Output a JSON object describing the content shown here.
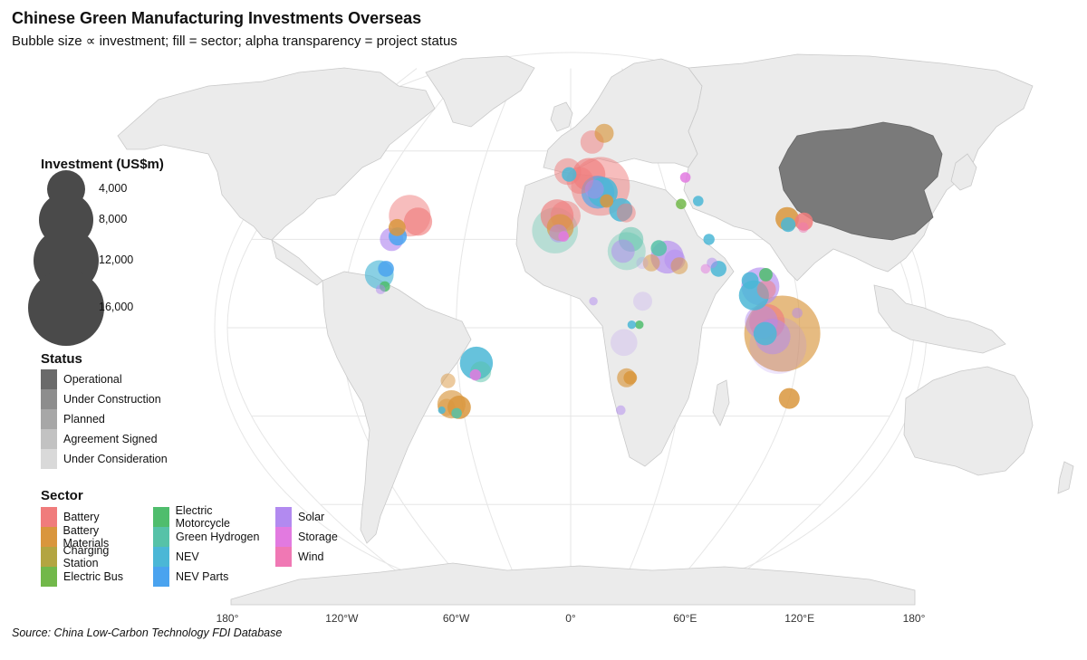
{
  "title": "Chinese Green Manufacturing Investments Overseas",
  "subtitle": "Bubble size ∝ investment; fill = sector; alpha transparency = project status",
  "source": "Source: China Low-Carbon Technology FDI Database",
  "x_axis_labels": [
    "180°",
    "120°W",
    "60°W",
    "0°",
    "60°E",
    "120°E",
    "180°"
  ],
  "x_axis_lons": [
    -180,
    -120,
    -60,
    0,
    60,
    120,
    180
  ],
  "colors": {
    "land": "#ebebeb",
    "border": "#c9c9c9",
    "china": "#7a7a7a",
    "graticule": "#e6e6e6"
  },
  "size_legend": {
    "title": "Investment (US$m)",
    "items": [
      {
        "value": 4000,
        "label": "4,000"
      },
      {
        "value": 8000,
        "label": "8,000"
      },
      {
        "value": 12000,
        "label": "12,000"
      },
      {
        "value": 16000,
        "label": "16,000"
      }
    ]
  },
  "status_legend": {
    "title": "Status",
    "items": [
      {
        "label": "Operational",
        "alpha": 0.85
      },
      {
        "label": "Under Construction",
        "alpha": 0.65
      },
      {
        "label": "Planned",
        "alpha": 0.5
      },
      {
        "label": "Agreement Signed",
        "alpha": 0.35
      },
      {
        "label": "Under Consideration",
        "alpha": 0.22
      }
    ]
  },
  "sector_legend": {
    "title": "Sector",
    "items": [
      {
        "label": "Battery",
        "color": "#f07c7c"
      },
      {
        "label": "Battery Materials",
        "color": "#d9963d"
      },
      {
        "label": "Charging Station",
        "color": "#b3a541"
      },
      {
        "label": "Electric Bus",
        "color": "#72b84a"
      },
      {
        "label": "Electric Motorcycle",
        "color": "#4fbd6d"
      },
      {
        "label": "Green Hydrogen",
        "color": "#56c2a8"
      },
      {
        "label": "NEV",
        "color": "#4bb7d6"
      },
      {
        "label": "NEV Parts",
        "color": "#4aa3ef"
      },
      {
        "label": "Solar",
        "color": "#b28af0"
      },
      {
        "label": "Storage",
        "color": "#e27ae0"
      },
      {
        "label": "Wind",
        "color": "#f078b4"
      }
    ]
  },
  "projects": [
    {
      "lon": -95,
      "lat": 38,
      "value": 4800,
      "sector": "Battery",
      "status": "Planned"
    },
    {
      "lon": -89,
      "lat": 36,
      "value": 2200,
      "sector": "Battery",
      "status": "Under Construction"
    },
    {
      "lon": -100,
      "lat": 34,
      "value": 800,
      "sector": "Battery Materials",
      "status": "Operational"
    },
    {
      "lon": -101,
      "lat": 30,
      "value": 1500,
      "sector": "Solar",
      "status": "Under Construction"
    },
    {
      "lon": -98,
      "lat": 31,
      "value": 900,
      "sector": "NEV Parts",
      "status": "Operational"
    },
    {
      "lon": -103,
      "lat": 18,
      "value": 2300,
      "sector": "NEV",
      "status": "Under Construction"
    },
    {
      "lon": -100,
      "lat": 20,
      "value": 700,
      "sector": "NEV Parts",
      "status": "Operational"
    },
    {
      "lon": -99,
      "lat": 14,
      "value": 300,
      "sector": "Electric Motorcycle",
      "status": "Operational"
    },
    {
      "lon": -101,
      "lat": 13,
      "value": 250,
      "sector": "Solar",
      "status": "Planned"
    },
    {
      "lon": -50,
      "lat": -12,
      "value": 3000,
      "sector": "NEV",
      "status": "Operational"
    },
    {
      "lon": -48,
      "lat": -15,
      "value": 1200,
      "sector": "Green Hydrogen",
      "status": "Planned"
    },
    {
      "lon": -51,
      "lat": -16,
      "value": 350,
      "sector": "Storage",
      "status": "Operational"
    },
    {
      "lon": -66,
      "lat": -18,
      "value": 600,
      "sector": "Battery Materials",
      "status": "Planned"
    },
    {
      "lon": -66,
      "lat": -26,
      "value": 2200,
      "sector": "Battery Materials",
      "status": "Under Construction"
    },
    {
      "lon": -62,
      "lat": -27,
      "value": 1500,
      "sector": "Battery Materials",
      "status": "Operational"
    },
    {
      "lon": -69,
      "lat": -27,
      "value": 800,
      "sector": "Battery Materials",
      "status": "Planned"
    },
    {
      "lon": -64,
      "lat": -29,
      "value": 300,
      "sector": "Green Hydrogen",
      "status": "Operational"
    },
    {
      "lon": -72,
      "lat": -28,
      "value": 150,
      "sector": "NEV",
      "status": "Operational"
    },
    {
      "lon": -8,
      "lat": 38,
      "value": 3000,
      "sector": "Battery",
      "status": "Under Construction"
    },
    {
      "lon": -3,
      "lat": 38,
      "value": 2500,
      "sector": "Battery",
      "status": "Planned"
    },
    {
      "lon": -9,
      "lat": 33,
      "value": 5800,
      "sector": "Green Hydrogen",
      "status": "Agreement Signed"
    },
    {
      "lon": -6,
      "lat": 34,
      "value": 2000,
      "sector": "Battery Materials",
      "status": "Under Construction"
    },
    {
      "lon": -7,
      "lat": 32,
      "value": 900,
      "sector": "Solar",
      "status": "Planned"
    },
    {
      "lon": -4,
      "lat": 31,
      "value": 300,
      "sector": "Storage",
      "status": "Operational"
    },
    {
      "lon": -2,
      "lat": 53,
      "value": 2000,
      "sector": "Battery",
      "status": "Planned"
    },
    {
      "lon": -1,
      "lat": 52,
      "value": 600,
      "sector": "NEV",
      "status": "Operational"
    },
    {
      "lon": 6,
      "lat": 50,
      "value": 2000,
      "sector": "Battery",
      "status": "Planned"
    },
    {
      "lon": 12,
      "lat": 52,
      "value": 3000,
      "sector": "Battery",
      "status": "Under Construction"
    },
    {
      "lon": 19,
      "lat": 48,
      "value": 9500,
      "sector": "Battery",
      "status": "Planned"
    },
    {
      "lon": 17,
      "lat": 46,
      "value": 3000,
      "sector": "NEV Parts",
      "status": "Under Construction"
    },
    {
      "lon": 20,
      "lat": 46,
      "value": 2500,
      "sector": "NEV",
      "status": "Operational"
    },
    {
      "lon": 15,
      "lat": 47,
      "value": 1000,
      "sector": "Solar",
      "status": "Planned"
    },
    {
      "lon": 22,
      "lat": 43,
      "value": 500,
      "sector": "Battery Materials",
      "status": "Operational"
    },
    {
      "lon": 16,
      "lat": 63,
      "value": 1500,
      "sector": "Battery",
      "status": "Planned"
    },
    {
      "lon": 26,
      "lat": 66,
      "value": 1000,
      "sector": "Battery Materials",
      "status": "Under Construction"
    },
    {
      "lon": 30,
      "lat": 40,
      "value": 1500,
      "sector": "NEV",
      "status": "Operational"
    },
    {
      "lon": 33,
      "lat": 39,
      "value": 1000,
      "sector": "Battery",
      "status": "Planned"
    },
    {
      "lon": 34,
      "lat": 30,
      "value": 1700,
      "sector": "Green Hydrogen",
      "status": "Planned"
    },
    {
      "lon": 31,
      "lat": 26,
      "value": 4000,
      "sector": "Green Hydrogen",
      "status": "Agreement Signed"
    },
    {
      "lon": 29,
      "lat": 26,
      "value": 1500,
      "sector": "Solar",
      "status": "Planned"
    },
    {
      "lon": 39,
      "lat": 22,
      "value": 400,
      "sector": "Solar",
      "status": "Under Consideration"
    },
    {
      "lon": 44,
      "lat": 22,
      "value": 800,
      "sector": "Battery Materials",
      "status": "Planned"
    },
    {
      "lon": 53,
      "lat": 24,
      "value": 3000,
      "sector": "Solar",
      "status": "Under Construction"
    },
    {
      "lon": 57,
      "lat": 23,
      "value": 1200,
      "sector": "Solar",
      "status": "Planned"
    },
    {
      "lon": 59,
      "lat": 21,
      "value": 800,
      "sector": "Battery Materials",
      "status": "Planned"
    },
    {
      "lon": 49,
      "lat": 27,
      "value": 700,
      "sector": "Green Hydrogen",
      "status": "Operational"
    },
    {
      "lon": 67,
      "lat": 42,
      "value": 300,
      "sector": "Electric Bus",
      "status": "Operational"
    },
    {
      "lon": 78,
      "lat": 43,
      "value": 300,
      "sector": "NEV",
      "status": "Operational"
    },
    {
      "lon": 78,
      "lat": 30,
      "value": 350,
      "sector": "NEV",
      "status": "Operational"
    },
    {
      "lon": 80,
      "lat": 20,
      "value": 700,
      "sector": "NEV",
      "status": "Operational"
    },
    {
      "lon": 77,
      "lat": 22,
      "value": 300,
      "sector": "Solar",
      "status": "Planned"
    },
    {
      "lon": 73,
      "lat": 20,
      "value": 250,
      "sector": "Storage",
      "status": "Planned"
    },
    {
      "lon": 75,
      "lat": 51,
      "value": 300,
      "sector": "Storage",
      "status": "Operational"
    },
    {
      "lon": 96,
      "lat": 16,
      "value": 800,
      "sector": "NEV",
      "status": "Operational"
    },
    {
      "lon": 101,
      "lat": 14,
      "value": 4000,
      "sector": "Solar",
      "status": "Under Construction"
    },
    {
      "lon": 97,
      "lat": 11,
      "value": 2500,
      "sector": "NEV",
      "status": "Operational"
    },
    {
      "lon": 104,
      "lat": 13,
      "value": 1000,
      "sector": "Battery",
      "status": "Planned"
    },
    {
      "lon": 105,
      "lat": 18,
      "value": 500,
      "sector": "Electric Motorcycle",
      "status": "Operational"
    },
    {
      "lon": 103,
      "lat": 2,
      "value": 3500,
      "sector": "Battery",
      "status": "Under Construction"
    },
    {
      "lon": 100,
      "lat": 2,
      "value": 3000,
      "sector": "Solar",
      "status": "Planned"
    },
    {
      "lon": 111,
      "lat": -2,
      "value": 16000,
      "sector": "Battery Materials",
      "status": "Under Construction"
    },
    {
      "lon": 109,
      "lat": -6,
      "value": 9000,
      "sector": "Solar",
      "status": "Under Consideration"
    },
    {
      "lon": 106,
      "lat": -3,
      "value": 3500,
      "sector": "Solar",
      "status": "Planned"
    },
    {
      "lon": 102,
      "lat": -2,
      "value": 1500,
      "sector": "NEV",
      "status": "Operational"
    },
    {
      "lon": 119,
      "lat": 5,
      "value": 300,
      "sector": "Solar",
      "status": "Planned"
    },
    {
      "lon": 127,
      "lat": 37,
      "value": 1500,
      "sector": "Battery Materials",
      "status": "Operational"
    },
    {
      "lon": 126,
      "lat": 35,
      "value": 600,
      "sector": "NEV",
      "status": "Operational"
    },
    {
      "lon": 136,
      "lat": 36,
      "value": 900,
      "sector": "Battery",
      "status": "Operational"
    },
    {
      "lon": 134,
      "lat": 34,
      "value": 300,
      "sector": "Wind",
      "status": "Planned"
    },
    {
      "lon": 120,
      "lat": -24,
      "value": 1200,
      "sector": "Battery Materials",
      "status": "Operational"
    },
    {
      "lon": 28,
      "lat": -5,
      "value": 2000,
      "sector": "Solar",
      "status": "Under Consideration"
    },
    {
      "lon": 30,
      "lat": -17,
      "value": 1000,
      "sector": "Battery Materials",
      "status": "Under Construction"
    },
    {
      "lon": 32,
      "lat": -17,
      "value": 500,
      "sector": "Battery Materials",
      "status": "Operational"
    },
    {
      "lon": 28,
      "lat": -28,
      "value": 250,
      "sector": "Solar",
      "status": "Planned"
    },
    {
      "lon": 38,
      "lat": 9,
      "value": 1000,
      "sector": "Solar",
      "status": "Under Consideration"
    },
    {
      "lon": 36,
      "lat": 1,
      "value": 200,
      "sector": "Electric Motorcycle",
      "status": "Operational"
    },
    {
      "lon": 32,
      "lat": 1,
      "value": 200,
      "sector": "NEV",
      "status": "Operational"
    },
    {
      "lon": 12,
      "lat": 9,
      "value": 200,
      "sector": "Solar",
      "status": "Planned"
    }
  ]
}
